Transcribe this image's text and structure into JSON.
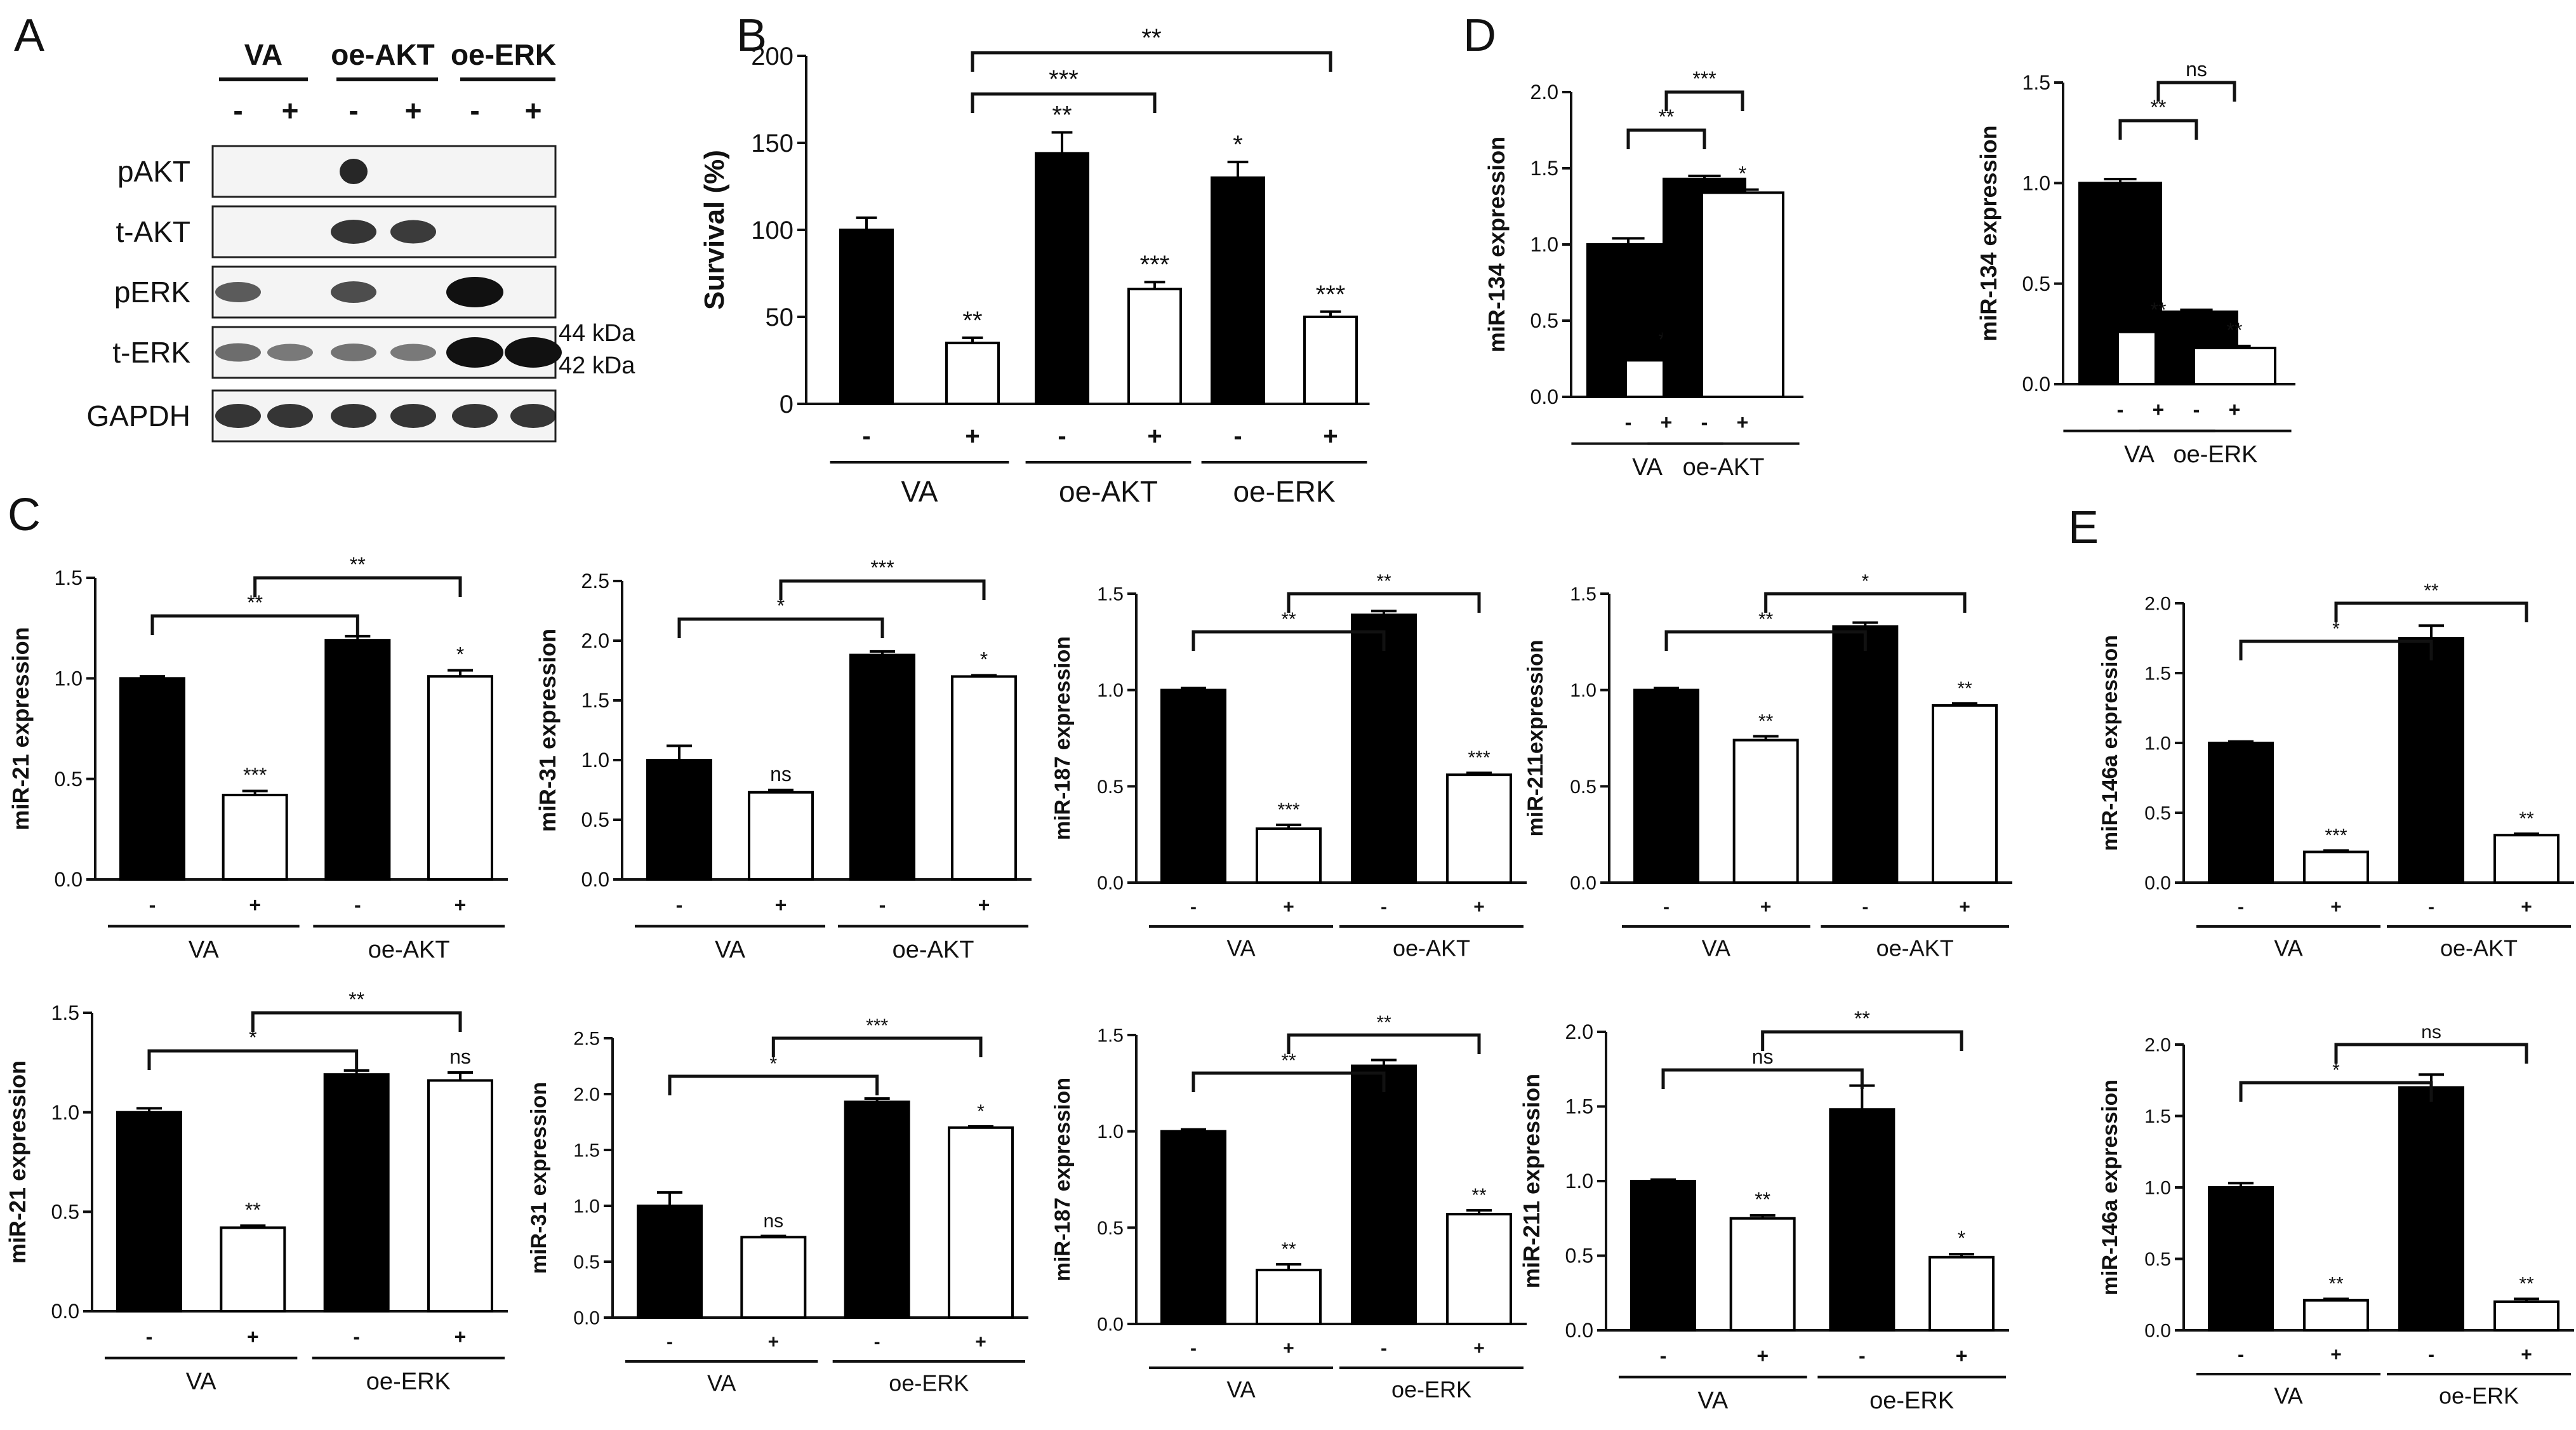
{
  "panel_labels": {
    "A": "A",
    "B": "B",
    "C": "C",
    "D": "D",
    "E": "E"
  },
  "western_blot": {
    "groups": [
      "VA",
      "oe-AKT",
      "oe-ERK"
    ],
    "lanes": [
      "-",
      "+",
      "-",
      "+",
      "-",
      "+"
    ],
    "rows": [
      "pAKT",
      "t-AKT",
      "pERK",
      "t-ERK",
      "GAPDH"
    ],
    "size_markers": [
      "44 kDa",
      "42 kDa"
    ]
  },
  "chart_data": [
    {
      "id": "B",
      "type": "bar",
      "ylabel": "Survival (%)",
      "ylim": [
        0,
        200
      ],
      "yticks": [
        0,
        50,
        100,
        150,
        200
      ],
      "decimals": 0,
      "treatment": [
        "-",
        "+",
        "-",
        "+",
        "-",
        "+"
      ],
      "groups": [
        "VA",
        "oe-AKT",
        "oe-ERK"
      ],
      "values": [
        100,
        35,
        144,
        66,
        130,
        50
      ],
      "errors": [
        7,
        3,
        12,
        4,
        9,
        3
      ],
      "marks": [
        "",
        "**",
        "**",
        "***",
        "*",
        "***"
      ],
      "brackets": [
        {
          "from": 1,
          "to": 3,
          "label": "***"
        },
        {
          "from": 1,
          "to": 5,
          "label": "**"
        }
      ]
    },
    {
      "id": "D1",
      "type": "bar",
      "ylabel": "miR-134 expression",
      "ylim": [
        0,
        2
      ],
      "yticks": [
        0,
        0.5,
        1,
        1.5,
        2
      ],
      "decimals": 1,
      "treatment": [
        "-",
        "+",
        "-",
        "+"
      ],
      "groups": [
        "VA",
        "oe-AKT"
      ],
      "values": [
        1.0,
        0.24,
        1.43,
        1.34
      ],
      "errors": [
        0.04,
        0.03,
        0.02,
        0.02
      ],
      "marks": [
        "",
        "**",
        "",
        "*"
      ],
      "brackets": [
        {
          "from": 0,
          "to": 2,
          "label": "**"
        },
        {
          "from": 1,
          "to": 3,
          "label": "***"
        }
      ]
    },
    {
      "id": "D2",
      "type": "bar",
      "ylabel": "miR-134 expression",
      "ylim": [
        0,
        1.5
      ],
      "yticks": [
        0,
        0.5,
        1,
        1.5
      ],
      "decimals": 1,
      "treatment": [
        "-",
        "+",
        "-",
        "+"
      ],
      "groups": [
        "VA",
        "oe-ERK"
      ],
      "values": [
        1.0,
        0.26,
        0.36,
        0.18
      ],
      "errors": [
        0.02,
        0.03,
        0.01,
        0.01
      ],
      "marks": [
        "",
        "**",
        "",
        "**"
      ],
      "brackets": [
        {
          "from": 0,
          "to": 2,
          "label": "**"
        },
        {
          "from": 1,
          "to": 3,
          "label": "ns"
        }
      ]
    },
    {
      "id": "C1",
      "type": "bar",
      "ylabel": "miR-21 expression",
      "ylim": [
        0,
        1.5
      ],
      "yticks": [
        0,
        0.5,
        1,
        1.5
      ],
      "decimals": 1,
      "treatment": [
        "-",
        "+",
        "-",
        "+"
      ],
      "groups": [
        "VA",
        "oe-AKT"
      ],
      "values": [
        1.0,
        0.42,
        1.19,
        1.01
      ],
      "errors": [
        0.01,
        0.02,
        0.02,
        0.03
      ],
      "marks": [
        "",
        "***",
        "",
        "*"
      ],
      "brackets": [
        {
          "from": 0,
          "to": 2,
          "label": "**"
        },
        {
          "from": 1,
          "to": 3,
          "label": "**"
        }
      ]
    },
    {
      "id": "C2",
      "type": "bar",
      "ylabel": "miR-31 expression",
      "ylim": [
        0,
        2.5
      ],
      "yticks": [
        0,
        0.5,
        1,
        1.5,
        2,
        2.5
      ],
      "decimals": 1,
      "treatment": [
        "-",
        "+",
        "-",
        "+"
      ],
      "groups": [
        "VA",
        "oe-AKT"
      ],
      "values": [
        1.0,
        0.73,
        1.88,
        1.7
      ],
      "errors": [
        0.12,
        0.02,
        0.03,
        0.01
      ],
      "marks": [
        "",
        "ns",
        "",
        "*"
      ],
      "brackets": [
        {
          "from": 0,
          "to": 2,
          "label": "*"
        },
        {
          "from": 1,
          "to": 3,
          "label": "***"
        }
      ]
    },
    {
      "id": "C3",
      "type": "bar",
      "ylabel": "miR-187 expression",
      "ylim": [
        0,
        1.5
      ],
      "yticks": [
        0,
        0.5,
        1,
        1.5
      ],
      "decimals": 1,
      "treatment": [
        "-",
        "+",
        "-",
        "+"
      ],
      "groups": [
        "VA",
        "oe-AKT"
      ],
      "values": [
        1.0,
        0.28,
        1.39,
        0.56
      ],
      "errors": [
        0.01,
        0.02,
        0.02,
        0.01
      ],
      "marks": [
        "",
        "***",
        "",
        "***"
      ],
      "brackets": [
        {
          "from": 0,
          "to": 2,
          "label": "**"
        },
        {
          "from": 1,
          "to": 3,
          "label": "**"
        }
      ]
    },
    {
      "id": "C4",
      "type": "bar",
      "ylabel": "miR-211expression",
      "ylim": [
        0,
        1.5
      ],
      "yticks": [
        0,
        0.5,
        1,
        1.5
      ],
      "decimals": 1,
      "treatment": [
        "-",
        "+",
        "-",
        "+"
      ],
      "groups": [
        "VA",
        "oe-AKT"
      ],
      "values": [
        1.0,
        0.74,
        1.33,
        0.92
      ],
      "errors": [
        0.01,
        0.02,
        0.02,
        0.01
      ],
      "marks": [
        "",
        "**",
        "",
        "**"
      ],
      "brackets": [
        {
          "from": 0,
          "to": 2,
          "label": "**"
        },
        {
          "from": 1,
          "to": 3,
          "label": "*"
        }
      ]
    },
    {
      "id": "E1",
      "type": "bar",
      "ylabel": "miR-146a expression",
      "ylim": [
        0,
        2
      ],
      "yticks": [
        0,
        0.5,
        1,
        1.5,
        2
      ],
      "decimals": 1,
      "treatment": [
        "-",
        "+",
        "-",
        "+"
      ],
      "groups": [
        "VA",
        "oe-AKT"
      ],
      "values": [
        1.0,
        0.22,
        1.75,
        0.34
      ],
      "errors": [
        0.01,
        0.01,
        0.09,
        0.01
      ],
      "marks": [
        "",
        "***",
        "",
        "**"
      ],
      "brackets": [
        {
          "from": 0,
          "to": 2,
          "label": "*"
        },
        {
          "from": 1,
          "to": 3,
          "label": "**"
        }
      ]
    },
    {
      "id": "C5",
      "type": "bar",
      "ylabel": "miR-21 expression",
      "ylim": [
        0,
        1.5
      ],
      "yticks": [
        0,
        0.5,
        1,
        1.5
      ],
      "decimals": 1,
      "treatment": [
        "-",
        "+",
        "-",
        "+"
      ],
      "groups": [
        "VA",
        "oe-ERK"
      ],
      "values": [
        1.0,
        0.42,
        1.19,
        1.16
      ],
      "errors": [
        0.02,
        0.01,
        0.02,
        0.04
      ],
      "marks": [
        "",
        "**",
        "",
        "ns"
      ],
      "brackets": [
        {
          "from": 0,
          "to": 2,
          "label": "*"
        },
        {
          "from": 1,
          "to": 3,
          "label": "**"
        }
      ]
    },
    {
      "id": "C6",
      "type": "bar",
      "ylabel": "miR-31 expression",
      "ylim": [
        0,
        2.5
      ],
      "yticks": [
        0,
        0.5,
        1,
        1.5,
        2,
        2.5
      ],
      "decimals": 1,
      "treatment": [
        "-",
        "+",
        "-",
        "+"
      ],
      "groups": [
        "VA",
        "oe-ERK"
      ],
      "values": [
        1.0,
        0.72,
        1.93,
        1.7
      ],
      "errors": [
        0.12,
        0.01,
        0.03,
        0.01
      ],
      "marks": [
        "",
        "ns",
        "",
        "*"
      ],
      "brackets": [
        {
          "from": 0,
          "to": 2,
          "label": "*"
        },
        {
          "from": 1,
          "to": 3,
          "label": "***"
        }
      ]
    },
    {
      "id": "C7",
      "type": "bar",
      "ylabel": "miR-187 expression",
      "ylim": [
        0,
        1.5
      ],
      "yticks": [
        0,
        0.5,
        1,
        1.5
      ],
      "decimals": 1,
      "treatment": [
        "-",
        "+",
        "-",
        "+"
      ],
      "groups": [
        "VA",
        "oe-ERK"
      ],
      "values": [
        1.0,
        0.28,
        1.34,
        0.57
      ],
      "errors": [
        0.01,
        0.03,
        0.03,
        0.02
      ],
      "marks": [
        "",
        "**",
        "",
        "**"
      ],
      "brackets": [
        {
          "from": 0,
          "to": 2,
          "label": "**"
        },
        {
          "from": 1,
          "to": 3,
          "label": "**"
        }
      ]
    },
    {
      "id": "C8",
      "type": "bar",
      "ylabel": "miR-211 expression",
      "ylim": [
        0,
        2
      ],
      "yticks": [
        0,
        0.5,
        1,
        1.5,
        2
      ],
      "decimals": 1,
      "treatment": [
        "-",
        "+",
        "-",
        "+"
      ],
      "groups": [
        "VA",
        "oe-ERK"
      ],
      "values": [
        1.0,
        0.75,
        1.48,
        0.49
      ],
      "errors": [
        0.01,
        0.02,
        0.16,
        0.02
      ],
      "marks": [
        "",
        "**",
        "",
        "*"
      ],
      "brackets": [
        {
          "from": 0,
          "to": 2,
          "label": "ns"
        },
        {
          "from": 1,
          "to": 3,
          "label": "**"
        }
      ]
    },
    {
      "id": "E2",
      "type": "bar",
      "ylabel": "miR-146a expression",
      "ylim": [
        0,
        2
      ],
      "yticks": [
        0,
        0.5,
        1,
        1.5,
        2
      ],
      "decimals": 1,
      "treatment": [
        "-",
        "+",
        "-",
        "+"
      ],
      "groups": [
        "VA",
        "oe-ERK"
      ],
      "values": [
        1.0,
        0.21,
        1.7,
        0.2
      ],
      "errors": [
        0.03,
        0.01,
        0.09,
        0.02
      ],
      "marks": [
        "",
        "**",
        "",
        "**"
      ],
      "brackets": [
        {
          "from": 0,
          "to": 2,
          "label": "*"
        },
        {
          "from": 1,
          "to": 3,
          "label": "ns"
        }
      ]
    }
  ]
}
